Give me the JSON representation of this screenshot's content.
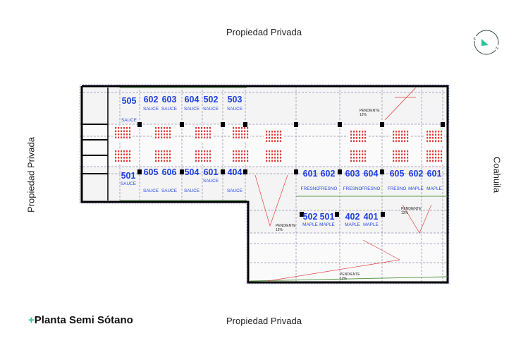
{
  "edges": {
    "top": "Propiedad Privada",
    "bottom": "Propiedad Privada",
    "left": "Propiedad Privada",
    "right": "Coahuila"
  },
  "title": {
    "plus": "+",
    "text": "Planta Semi Sótano"
  },
  "compass": {
    "south": "S",
    "north": "N",
    "accent": "#2ec4a0"
  },
  "colors": {
    "unit_number": "#1f3fe0",
    "parking_grid": "#e04040",
    "wall": "#000000",
    "green_line": "#5a9a4a"
  },
  "units": [
    {
      "number": "505",
      "species": "SAUCE"
    },
    {
      "number": "602",
      "species": "SAUCE"
    },
    {
      "number": "603",
      "species": "SAUCE"
    },
    {
      "number": "604",
      "species": "SAUCE"
    },
    {
      "number": "502",
      "species": "SAUCE"
    },
    {
      "number": "503",
      "species": "SAUCE"
    },
    {
      "number": "501",
      "species": "SAUCE"
    },
    {
      "number": "605",
      "species": "SAUCE"
    },
    {
      "number": "606",
      "species": "SAUCE"
    },
    {
      "number": "504",
      "species": "SAUCE"
    },
    {
      "number": "601",
      "species": "SAUCE"
    },
    {
      "number": "404",
      "species": "SAUCE"
    },
    {
      "number": "601",
      "species": "FRESNO"
    },
    {
      "number": "602",
      "species": "FRESNO"
    },
    {
      "number": "603",
      "species": "FRESNO"
    },
    {
      "number": "604",
      "species": "FRESNO"
    },
    {
      "number": "605",
      "species": "FRESNO"
    },
    {
      "number": "602",
      "species": "MAPLE"
    },
    {
      "number": "601",
      "species": "MAPLE"
    },
    {
      "number": "502",
      "species": "MAPLE"
    },
    {
      "number": "501",
      "species": "MAPLE"
    },
    {
      "number": "402",
      "species": "MAPLE"
    },
    {
      "number": "401",
      "species": "MAPLE"
    }
  ],
  "ramps": [
    {
      "label": "PENDIENTE",
      "value": "12%"
    },
    {
      "label": "PENDIENTE",
      "value": "12%"
    },
    {
      "label": "PENDIENTE",
      "value": "12%"
    },
    {
      "label": "PENDIENTE",
      "value": "12%"
    }
  ]
}
